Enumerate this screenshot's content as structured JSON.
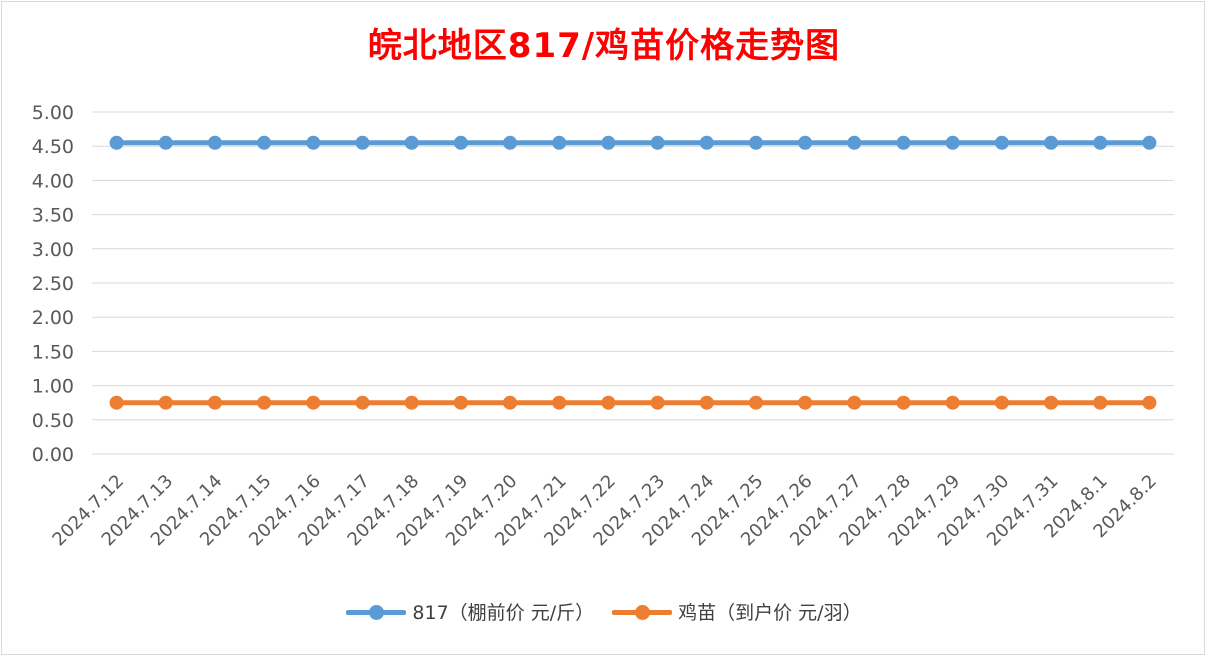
{
  "chart_data": {
    "type": "line",
    "title": "皖北地区817/鸡苗价格走势图",
    "categories": [
      "2024.7.12",
      "2024.7.13",
      "2024.7.14",
      "2024.7.15",
      "2024.7.16",
      "2024.7.17",
      "2024.7.18",
      "2024.7.19",
      "2024.7.20",
      "2024.7.21",
      "2024.7.22",
      "2024.7.23",
      "2024.7.24",
      "2024.7.25",
      "2024.7.26",
      "2024.7.27",
      "2024.7.28",
      "2024.7.29",
      "2024.7.30",
      "2024.7.31",
      "2024.8.1",
      "2024.8.2"
    ],
    "series": [
      {
        "name": "817（棚前价 元/斤）",
        "color": "#5b9bd5",
        "values": [
          4.55,
          4.55,
          4.55,
          4.55,
          4.55,
          4.55,
          4.55,
          4.55,
          4.55,
          4.55,
          4.55,
          4.55,
          4.55,
          4.55,
          4.55,
          4.55,
          4.55,
          4.55,
          4.55,
          4.55,
          4.55,
          4.55
        ]
      },
      {
        "name": "鸡苗（到户价 元/羽）",
        "color": "#ed7d31",
        "values": [
          0.75,
          0.75,
          0.75,
          0.75,
          0.75,
          0.75,
          0.75,
          0.75,
          0.75,
          0.75,
          0.75,
          0.75,
          0.75,
          0.75,
          0.75,
          0.75,
          0.75,
          0.75,
          0.75,
          0.75,
          0.75,
          0.75
        ]
      }
    ],
    "yticks": [
      "0.00",
      "0.50",
      "1.00",
      "1.50",
      "2.00",
      "2.50",
      "3.00",
      "3.50",
      "4.00",
      "4.50",
      "5.00"
    ],
    "ylim": [
      0,
      5
    ],
    "grid": true,
    "legend_position": "bottom"
  }
}
